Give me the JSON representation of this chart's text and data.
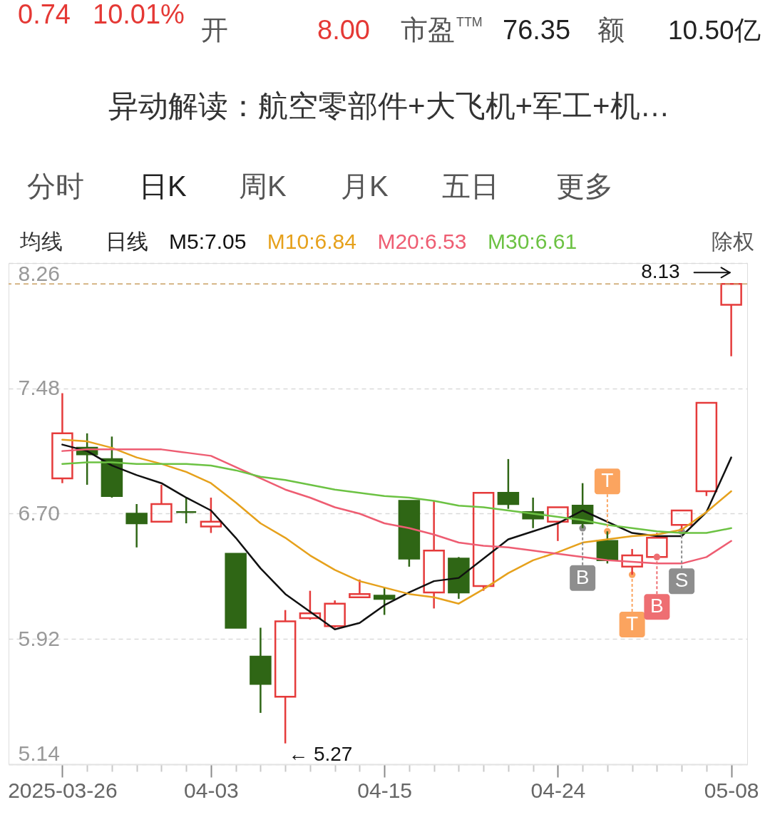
{
  "chart_data": {
    "type": "candlestick",
    "categories": [
      "2025-03-26",
      null,
      null,
      null,
      null,
      null,
      "04-03",
      null,
      null,
      null,
      null,
      null,
      null,
      "04-15",
      null,
      null,
      null,
      null,
      null,
      null,
      "04-24",
      null,
      null,
      null,
      null,
      null,
      null,
      "05-08"
    ],
    "ohlc": [
      [
        6.92,
        7.45,
        6.89,
        7.2
      ],
      [
        7.11,
        7.2,
        6.88,
        7.07
      ],
      [
        7.04,
        7.18,
        6.8,
        6.81
      ],
      [
        6.7,
        6.76,
        6.49,
        6.64
      ],
      [
        6.65,
        6.88,
        6.65,
        6.76
      ],
      [
        6.71,
        6.8,
        6.64,
        6.71
      ],
      [
        6.62,
        6.8,
        6.58,
        6.65
      ],
      [
        6.45,
        6.45,
        5.99,
        5.99
      ],
      [
        5.81,
        5.99,
        5.46,
        5.64
      ],
      [
        5.56,
        6.1,
        5.27,
        6.03
      ],
      [
        6.05,
        6.22,
        6.04,
        6.08
      ],
      [
        6.0,
        6.16,
        5.99,
        6.14
      ],
      [
        6.18,
        6.29,
        6.18,
        6.2
      ],
      [
        6.19,
        6.24,
        6.07,
        6.17
      ],
      [
        6.78,
        6.78,
        6.37,
        6.42
      ],
      [
        6.21,
        6.78,
        6.11,
        6.47
      ],
      [
        6.42,
        6.43,
        6.17,
        6.21
      ],
      [
        6.25,
        6.83,
        6.22,
        6.83
      ],
      [
        6.83,
        7.04,
        6.73,
        6.76
      ],
      [
        6.71,
        6.8,
        6.61,
        6.67
      ],
      [
        6.65,
        6.74,
        6.53,
        6.74
      ],
      [
        6.75,
        6.89,
        6.61,
        6.64
      ],
      [
        6.53,
        6.59,
        6.39,
        6.41
      ],
      [
        6.37,
        6.48,
        6.32,
        6.44
      ],
      [
        6.43,
        6.58,
        6.43,
        6.55
      ],
      [
        6.63,
        6.72,
        6.59,
        6.72
      ],
      [
        6.84,
        7.39,
        6.81,
        7.39
      ],
      [
        8.0,
        8.13,
        7.68,
        8.13
      ]
    ],
    "colors": [
      "#e53b3b",
      "#2f6615",
      "#2f6615",
      "#2f6615",
      "#e53b3b",
      "#2f6615",
      "#e53b3b",
      "#2f6615",
      "#2f6615",
      "#e53b3b",
      "#e53b3b",
      "#e53b3b",
      "#e53b3b",
      "#2f6615",
      "#2f6615",
      "#e53b3b",
      "#2f6615",
      "#e53b3b",
      "#2f6615",
      "#2f6615",
      "#e53b3b",
      "#2f6615",
      "#2f6615",
      "#e53b3b",
      "#e53b3b",
      "#e53b3b",
      "#e53b3b",
      "#e53b3b"
    ],
    "series": [
      {
        "name": "M5:7.05",
        "type": "line",
        "color": "#111111",
        "values": [
          7.13,
          7.09,
          7.0,
          6.94,
          6.89,
          6.8,
          6.72,
          6.55,
          6.36,
          6.2,
          6.09,
          5.98,
          6.02,
          6.13,
          6.21,
          6.28,
          6.3,
          6.42,
          6.54,
          6.59,
          6.64,
          6.72,
          6.65,
          6.58,
          6.56,
          6.56,
          6.71,
          7.05
        ]
      },
      {
        "name": "M10:6.84",
        "type": "line",
        "color": "#e6a11c",
        "values": [
          7.16,
          7.15,
          7.11,
          7.05,
          7.01,
          6.96,
          6.89,
          6.77,
          6.64,
          6.55,
          6.44,
          6.35,
          6.28,
          6.24,
          6.2,
          6.18,
          6.14,
          6.23,
          6.33,
          6.41,
          6.46,
          6.52,
          6.54,
          6.56,
          6.57,
          6.6,
          6.71,
          6.84
        ]
      },
      {
        "name": "M20:6.53",
        "type": "line",
        "color": "#ee5d72",
        "values": [
          7.09,
          7.1,
          7.1,
          7.1,
          7.1,
          7.08,
          7.06,
          6.99,
          6.92,
          6.85,
          6.8,
          6.74,
          6.7,
          6.64,
          6.61,
          6.57,
          6.52,
          6.5,
          6.49,
          6.47,
          6.45,
          6.43,
          6.41,
          6.4,
          6.39,
          6.39,
          6.43,
          6.53
        ]
      },
      {
        "name": "M30:6.61",
        "type": "line",
        "color": "#6cc243",
        "values": [
          7.01,
          7.02,
          7.02,
          7.01,
          7.01,
          7.01,
          7.0,
          6.97,
          6.93,
          6.91,
          6.88,
          6.85,
          6.83,
          6.81,
          6.8,
          6.78,
          6.75,
          6.74,
          6.72,
          6.7,
          6.68,
          6.66,
          6.63,
          6.61,
          6.59,
          6.58,
          6.58,
          6.61
        ]
      },
      {
        "type": "scatter",
        "marker": "circle",
        "color": "#8e8e8e",
        "values": [
          null,
          null,
          null,
          null,
          null,
          null,
          null,
          null,
          null,
          null,
          null,
          null,
          null,
          null,
          null,
          null,
          null,
          null,
          null,
          null,
          null,
          6.61,
          null,
          null,
          null,
          6.59,
          null,
          null
        ],
        "value_labels": [
          null,
          null,
          null,
          null,
          null,
          null,
          null,
          null,
          null,
          null,
          null,
          null,
          null,
          null,
          null,
          null,
          null,
          null,
          null,
          null,
          null,
          "B",
          null,
          null,
          null,
          "S",
          null,
          null
        ]
      },
      {
        "type": "scatter",
        "marker": "circle",
        "color": "#fba45f",
        "values": [
          null,
          null,
          null,
          null,
          null,
          null,
          null,
          null,
          null,
          null,
          null,
          null,
          null,
          null,
          null,
          null,
          null,
          null,
          null,
          null,
          null,
          null,
          6.59,
          6.32,
          null,
          null,
          null,
          null
        ],
        "value_labels": [
          null,
          null,
          null,
          null,
          null,
          null,
          null,
          null,
          null,
          null,
          null,
          null,
          null,
          null,
          null,
          null,
          null,
          null,
          null,
          null,
          null,
          null,
          "T",
          "T",
          null,
          null,
          null,
          null
        ]
      },
      {
        "type": "scatter",
        "marker": "circle",
        "color": "#ee6e72",
        "values": [
          null,
          null,
          null,
          null,
          null,
          null,
          null,
          null,
          null,
          null,
          null,
          null,
          null,
          null,
          null,
          null,
          null,
          null,
          null,
          null,
          null,
          null,
          null,
          null,
          6.43,
          null,
          null,
          null
        ],
        "value_labels": [
          null,
          null,
          null,
          null,
          null,
          null,
          null,
          null,
          null,
          null,
          null,
          null,
          null,
          null,
          null,
          null,
          null,
          null,
          null,
          null,
          null,
          null,
          null,
          null,
          "B",
          null,
          null,
          null
        ]
      }
    ],
    "ylim": [
      5.14,
      8.26
    ],
    "yticks": [
      5.14,
      5.92,
      {
        "value": 6.7,
        "label": "6.70"
      },
      7.48,
      8.26
    ],
    "ref_lines": [
      {
        "axis": "y",
        "value": 8.13,
        "color": "#c9a063",
        "line_style": "dashed"
      }
    ],
    "grid": "y",
    "legend": "top left",
    "annotations": [
      {
        "text": "8.13",
        "x": "05-08",
        "y": 8.13
      },
      "← 5.27",
      "0.74",
      "10.01%",
      "开",
      "8.00",
      "市盈$^{TTM}$",
      "76.35",
      "额",
      "10.50亿",
      "异动解读：航空零部件+大飞机+军工+机…",
      "分时",
      "日K",
      "周K",
      "月K",
      "五日",
      "更多",
      "均线",
      "日线",
      "除权"
    ]
  }
}
